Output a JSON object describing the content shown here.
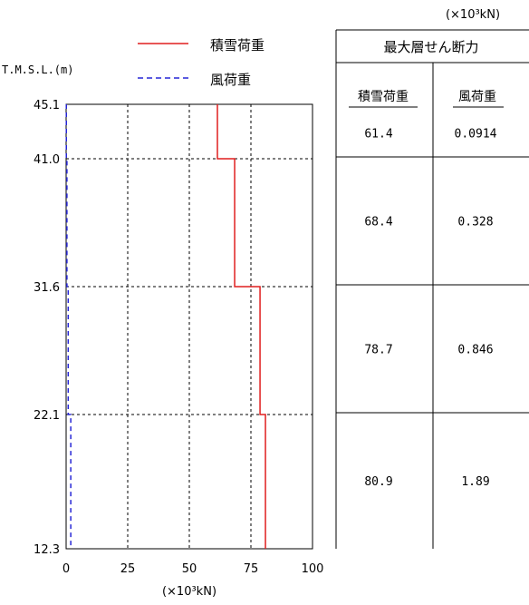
{
  "legend": {
    "items": [
      {
        "label": "積雪荷重",
        "color": "#e01f1f",
        "dash": "solid"
      },
      {
        "label": "風荷重",
        "color": "#2727d6",
        "dash": "dashed"
      }
    ]
  },
  "top_unit": "(×10³kN)",
  "table": {
    "header": "最大層せん断力",
    "columns": [
      "積雪荷重",
      "風荷重"
    ],
    "rows": [
      [
        "61.4",
        "0.0914"
      ],
      [
        "68.4",
        "0.328"
      ],
      [
        "78.7",
        "0.846"
      ],
      [
        "80.9",
        "1.89"
      ]
    ]
  },
  "chart_data": {
    "type": "line",
    "ylabel": "T.M.S.L.(m)",
    "xunit": "(×10³kN)",
    "xlim": [
      0,
      100
    ],
    "xticks": [
      0,
      25,
      50,
      75,
      100
    ],
    "yticks": [
      "45.1",
      "41.0",
      "31.6",
      "22.1",
      "12.3"
    ],
    "ylevels": [
      45.1,
      41.0,
      31.6,
      22.1,
      12.3
    ],
    "grid": true,
    "legend_position": "top",
    "series": [
      {
        "name": "積雪荷重",
        "color": "#e01f1f",
        "values": [
          61.4,
          68.4,
          78.7,
          80.9
        ]
      },
      {
        "name": "風荷重",
        "color": "#2727d6",
        "values": [
          0.0914,
          0.328,
          0.846,
          1.89
        ]
      }
    ]
  }
}
